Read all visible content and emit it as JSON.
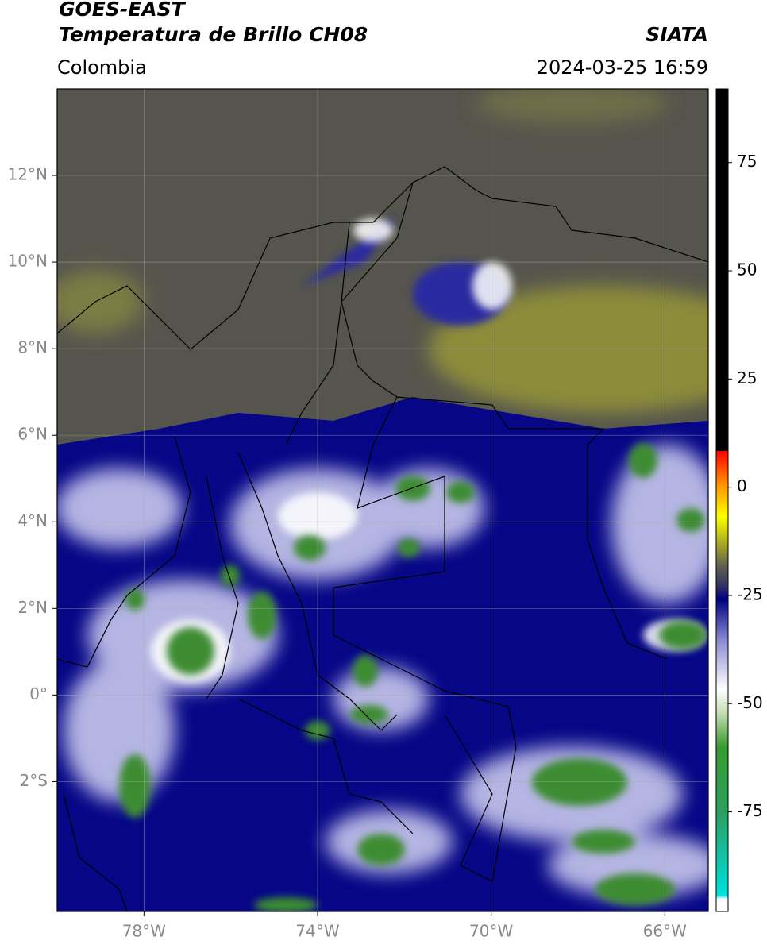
{
  "header": {
    "title": "GOES-EAST",
    "subtitle": "Temperatura de Brillo CH08",
    "region": "Colombia",
    "source": "SIATA",
    "datetime": "2024-03-25 16:59"
  },
  "map": {
    "xlim": [
      -80,
      -65
    ],
    "ylim": [
      -5,
      14
    ],
    "lat_ticks": [
      {
        "value": 12,
        "label": "12°N"
      },
      {
        "value": 10,
        "label": "10°N"
      },
      {
        "value": 8,
        "label": "8°N"
      },
      {
        "value": 6,
        "label": "6°N"
      },
      {
        "value": 4,
        "label": "4°N"
      },
      {
        "value": 2,
        "label": "2°N"
      },
      {
        "value": 0,
        "label": "0°"
      },
      {
        "value": -2,
        "label": "2°S"
      }
    ],
    "lon_ticks": [
      {
        "value": -78,
        "label": "78°W"
      },
      {
        "value": -74,
        "label": "74°W"
      },
      {
        "value": -70,
        "label": "70°W"
      },
      {
        "value": -66,
        "label": "66°W"
      }
    ],
    "grid": true
  },
  "colorbar": {
    "lim": [
      -98,
      92
    ],
    "ticks": [
      75,
      50,
      25,
      0,
      -25,
      -50,
      -75
    ]
  }
}
